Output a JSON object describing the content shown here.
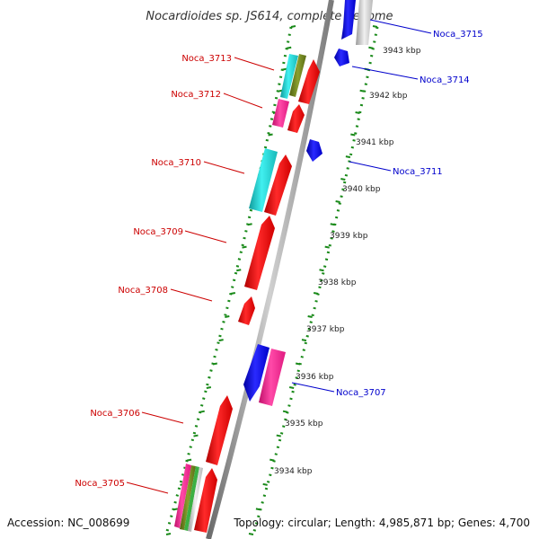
{
  "title": "Nocardioides sp. JS614, complete genome",
  "footer": {
    "accession": "Accession: NC_008699",
    "topology": "Topology: circular; Length: 4,985,871 bp; Genes: 4,700"
  },
  "colors": {
    "forward_label": "#cc0000",
    "reverse_label": "#0000cc",
    "backbone": "#8a8a8a",
    "tick_dots": "#1a8a1a",
    "red": "#ff0000",
    "blue": "#0000ee",
    "cyan": "#20d0d0",
    "magenta": "#ff1493",
    "olive": "#6b7f1a",
    "grey": "#c8c8c8"
  },
  "ticks": [
    "3934 kbp",
    "3935 kbp",
    "3936 kbp",
    "3937 kbp",
    "3938 kbp",
    "3939 kbp",
    "3940 kbp",
    "3941 kbp",
    "3942 kbp",
    "3943 kbp"
  ],
  "genes": [
    {
      "label": "Noca_3715",
      "strand": "reverse"
    },
    {
      "label": "Noca_3714",
      "strand": "reverse"
    },
    {
      "label": "Noca_3713",
      "strand": "forward"
    },
    {
      "label": "Noca_3712",
      "strand": "forward"
    },
    {
      "label": "Noca_3711",
      "strand": "reverse"
    },
    {
      "label": "Noca_3710",
      "strand": "forward"
    },
    {
      "label": "Noca_3709",
      "strand": "forward"
    },
    {
      "label": "Noca_3708",
      "strand": "forward"
    },
    {
      "label": "Noca_3707",
      "strand": "reverse"
    },
    {
      "label": "Noca_3706",
      "strand": "forward"
    },
    {
      "label": "Noca_3705",
      "strand": "forward"
    }
  ]
}
